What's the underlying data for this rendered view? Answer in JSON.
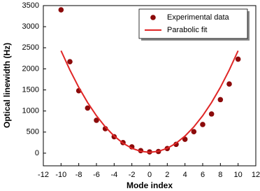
{
  "chart_data": {
    "type": "scatter",
    "x_label": "Mode index",
    "y_label": "Optical linewidth (Hz)",
    "x": [
      -10,
      -9,
      -8,
      -7,
      -6,
      -5,
      -4,
      -3,
      -2,
      -1,
      0,
      1,
      2,
      3,
      4,
      5,
      6,
      7,
      8,
      9,
      10
    ],
    "series": [
      {
        "name": "Experimental data",
        "type": "scatter",
        "color": "#8b0a0a",
        "values": [
          3400,
          2170,
          1480,
          1070,
          780,
          580,
          390,
          250,
          150,
          60,
          30,
          40,
          110,
          210,
          330,
          510,
          680,
          930,
          1270,
          1640,
          2230
        ]
      },
      {
        "name": "Parabolic fit",
        "type": "line",
        "color": "#e02626",
        "values": [
          2430,
          1972,
          1562,
          1201,
          888,
          623,
          406,
          237,
          116,
          44,
          20,
          44,
          116,
          237,
          406,
          623,
          888,
          1201,
          1562,
          1972,
          2430
        ]
      }
    ],
    "xlim": [
      -12,
      12
    ],
    "xticks": [
      -12,
      -10,
      -8,
      -6,
      -4,
      -2,
      0,
      2,
      4,
      6,
      8,
      10,
      12
    ],
    "ylim": [
      -300,
      3500
    ],
    "yticks": [
      0,
      500,
      1000,
      1500,
      2000,
      2500,
      3000,
      3500
    ],
    "legend": "upper-right"
  }
}
